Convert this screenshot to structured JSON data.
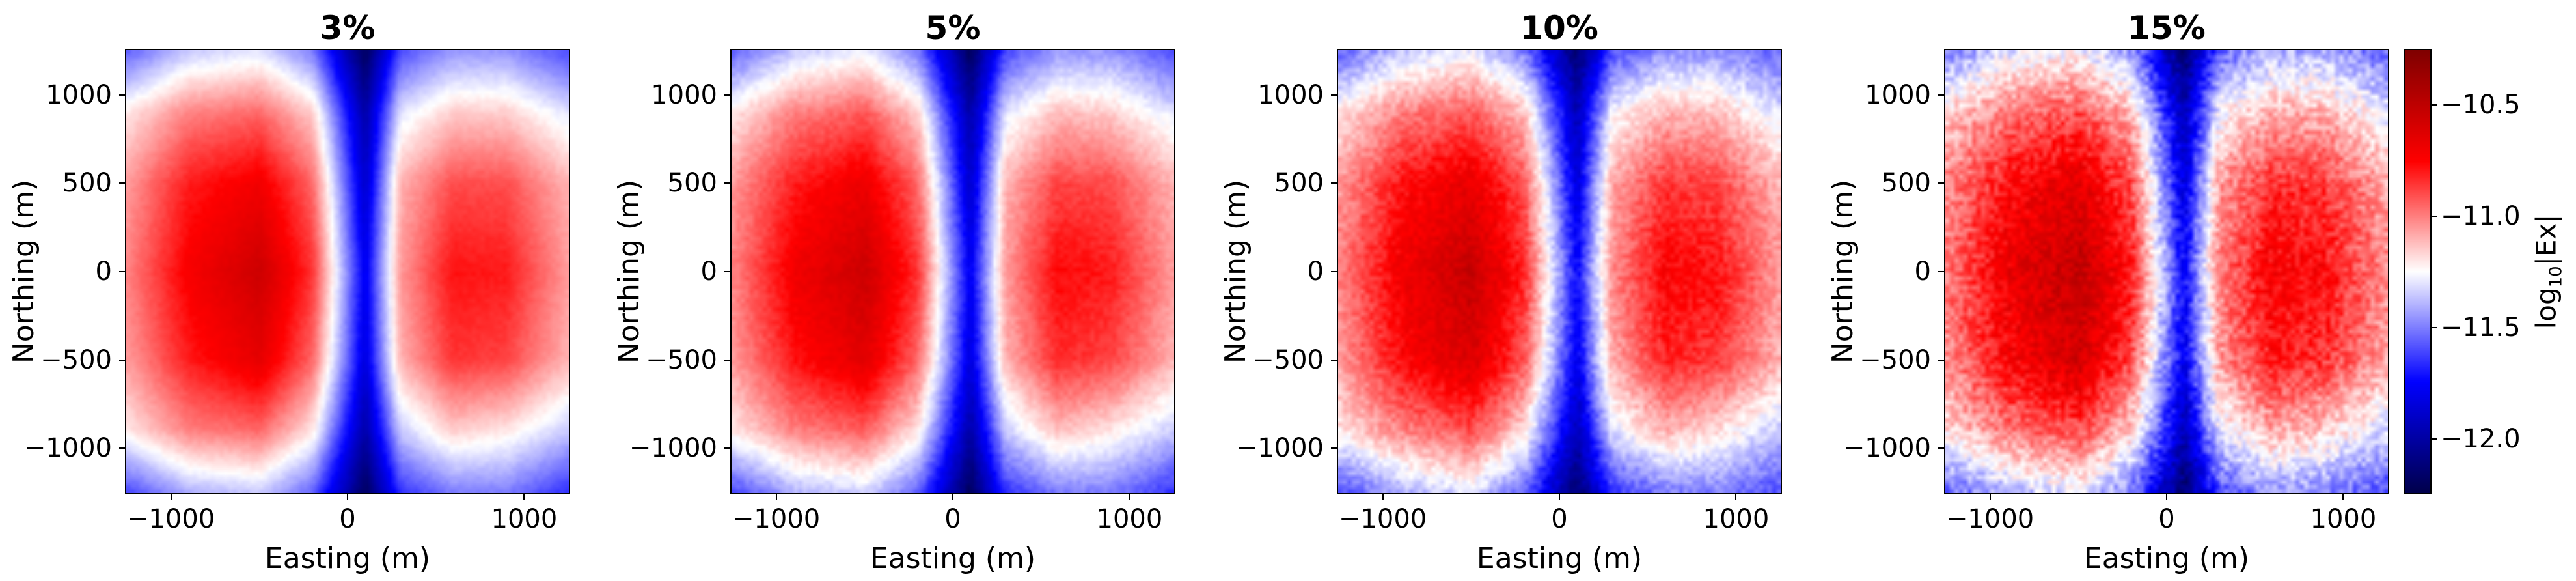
{
  "chart_data": {
    "type": "heatmap",
    "colormap": "seismic",
    "colors": {
      "low": "#00004c",
      "mid_low": "#0000ff",
      "center": "#ffffff",
      "mid_high": "#ff0000",
      "high": "#800000"
    },
    "grid_x": [
      -1250,
      -900,
      -500,
      -200,
      100,
      300,
      600,
      900,
      1250
    ],
    "grid_y": [
      1250,
      900,
      500,
      0,
      -500,
      -900,
      -1250
    ],
    "xlim": [
      -1260,
      1260
    ],
    "ylim": [
      -1260,
      1260
    ],
    "xticks": [
      -1000,
      0,
      1000
    ],
    "yticks": [
      1000,
      500,
      0,
      -500,
      -1000
    ],
    "xtick_labels": [
      "−1000",
      "0",
      "1000"
    ],
    "ytick_labels": [
      "1000",
      "500",
      "0",
      "−500",
      "−1000"
    ],
    "xlabel": "Easting (m)",
    "ylabel": "Northing (m)",
    "panels": [
      {
        "title": "3%",
        "values": [
          [
            -11.55,
            -11.35,
            -11.3,
            -11.5,
            -12.2,
            -11.6,
            -11.45,
            -11.45,
            -11.6
          ],
          [
            -11.2,
            -11.0,
            -10.95,
            -11.15,
            -12.0,
            -11.3,
            -11.15,
            -11.15,
            -11.3
          ],
          [
            -11.05,
            -10.8,
            -10.7,
            -10.95,
            -11.9,
            -11.1,
            -10.9,
            -10.9,
            -11.1
          ],
          [
            -11.0,
            -10.72,
            -10.55,
            -10.85,
            -11.8,
            -11.05,
            -10.78,
            -10.8,
            -11.05
          ],
          [
            -11.05,
            -10.8,
            -10.65,
            -10.95,
            -11.85,
            -11.1,
            -10.85,
            -10.88,
            -11.1
          ],
          [
            -11.2,
            -11.0,
            -10.95,
            -11.2,
            -12.0,
            -11.35,
            -11.15,
            -11.2,
            -11.35
          ],
          [
            -11.6,
            -11.4,
            -11.35,
            -11.55,
            -12.2,
            -11.65,
            -11.5,
            -11.5,
            -11.65
          ]
        ]
      },
      {
        "title": "5%",
        "values": [
          [
            -11.55,
            -11.35,
            -11.28,
            -11.5,
            -12.2,
            -11.6,
            -11.45,
            -11.45,
            -11.6
          ],
          [
            -11.2,
            -11.0,
            -10.92,
            -11.15,
            -12.0,
            -11.3,
            -11.12,
            -11.15,
            -11.3
          ],
          [
            -11.05,
            -10.8,
            -10.68,
            -10.95,
            -11.9,
            -11.1,
            -10.88,
            -10.9,
            -11.1
          ],
          [
            -11.0,
            -10.7,
            -10.55,
            -10.85,
            -11.8,
            -11.05,
            -10.76,
            -10.8,
            -11.05
          ],
          [
            -11.05,
            -10.78,
            -10.63,
            -10.95,
            -11.85,
            -11.1,
            -10.83,
            -10.88,
            -11.1
          ],
          [
            -11.2,
            -11.0,
            -10.93,
            -11.2,
            -12.0,
            -11.35,
            -11.12,
            -11.2,
            -11.35
          ],
          [
            -11.6,
            -11.4,
            -11.33,
            -11.55,
            -12.2,
            -11.65,
            -11.5,
            -11.5,
            -11.65
          ]
        ]
      },
      {
        "title": "10%",
        "values": [
          [
            -11.55,
            -11.35,
            -11.28,
            -11.5,
            -12.15,
            -11.6,
            -11.45,
            -11.45,
            -11.55
          ],
          [
            -11.2,
            -11.0,
            -10.92,
            -11.12,
            -11.95,
            -11.25,
            -11.1,
            -11.12,
            -11.3
          ],
          [
            -11.05,
            -10.78,
            -10.66,
            -10.92,
            -11.85,
            -11.08,
            -10.86,
            -10.88,
            -11.1
          ],
          [
            -11.0,
            -10.7,
            -10.52,
            -10.82,
            -11.75,
            -11.02,
            -10.74,
            -10.78,
            -11.05
          ],
          [
            -11.05,
            -10.76,
            -10.6,
            -10.92,
            -11.8,
            -11.08,
            -10.82,
            -10.86,
            -11.1
          ],
          [
            -11.2,
            -11.0,
            -10.9,
            -11.18,
            -11.95,
            -11.3,
            -11.1,
            -11.18,
            -11.35
          ],
          [
            -11.6,
            -11.4,
            -11.3,
            -11.55,
            -12.15,
            -11.65,
            -11.5,
            -11.5,
            -11.6
          ]
        ]
      },
      {
        "title": "15%",
        "values": [
          [
            -11.5,
            -11.3,
            -11.25,
            -11.45,
            -12.15,
            -11.55,
            -11.4,
            -11.4,
            -11.55
          ],
          [
            -11.15,
            -10.98,
            -10.9,
            -11.1,
            -11.95,
            -11.25,
            -11.08,
            -11.1,
            -11.28
          ],
          [
            -11.02,
            -10.76,
            -10.64,
            -10.9,
            -11.85,
            -11.06,
            -10.84,
            -10.86,
            -11.08
          ],
          [
            -10.98,
            -10.68,
            -10.5,
            -10.8,
            -11.75,
            -11.0,
            -10.72,
            -10.76,
            -11.02
          ],
          [
            -11.02,
            -10.74,
            -10.58,
            -10.9,
            -11.8,
            -11.05,
            -10.8,
            -10.84,
            -11.08
          ],
          [
            -11.18,
            -10.98,
            -10.88,
            -11.15,
            -11.95,
            -11.28,
            -11.08,
            -11.15,
            -11.32
          ],
          [
            -11.55,
            -11.38,
            -11.28,
            -11.52,
            -12.15,
            -11.6,
            -11.45,
            -11.48,
            -11.6
          ]
        ]
      }
    ],
    "colorbar": {
      "range": [
        -12.25,
        -10.25
      ],
      "ticks": [
        -10.5,
        -11.0,
        -11.5,
        -12.0
      ],
      "tick_labels": [
        "−10.5",
        "−11.0",
        "−11.5",
        "−12.0"
      ],
      "label_main": "log",
      "label_sub": "10",
      "label_rest": "|Ex|"
    }
  }
}
